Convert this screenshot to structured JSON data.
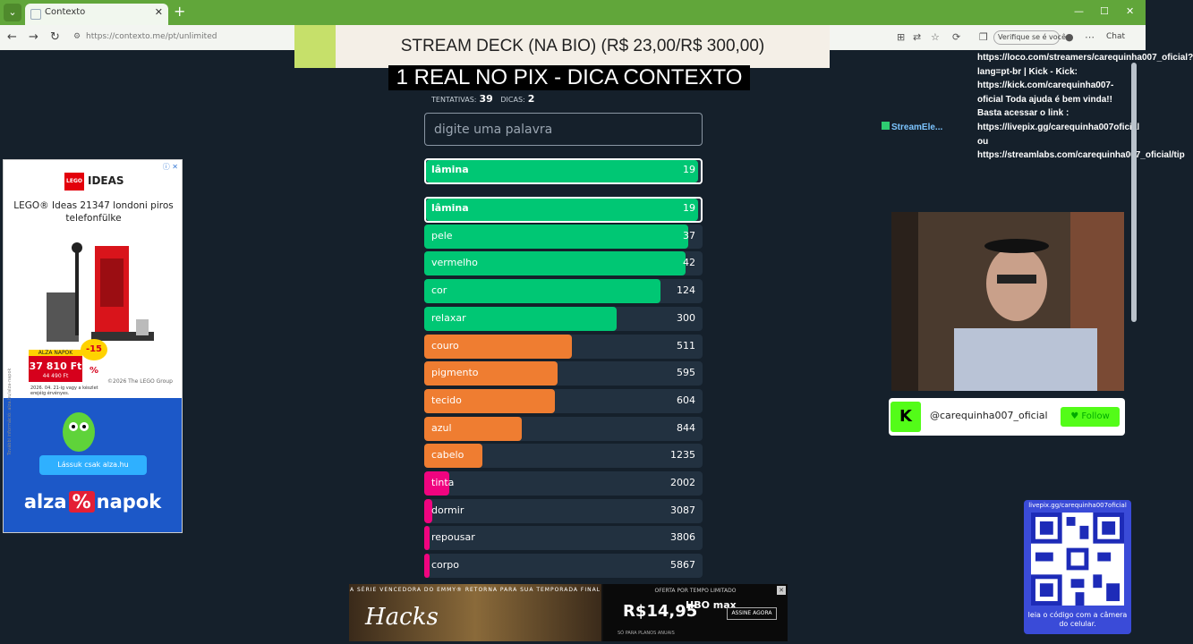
{
  "browser": {
    "tab_title": "Contexto",
    "url": "https://contexto.me/pt/unlimited",
    "verify_label": "Verifique se é você",
    "chat_label": "Chat"
  },
  "overlay": {
    "banner": "STREAM DECK (NA BIO) (R$ 23,00/R$ 300,00)",
    "pix_line": "1 REAL NO PIX - DICA CONTEXTO"
  },
  "game": {
    "attempts_label": "TENTATIVAS:",
    "attempts": "39",
    "hints_label": "DICAS:",
    "hints": "2",
    "input_placeholder": "digite uma palavra",
    "last_guess": {
      "word": "lâmina",
      "rank": "19",
      "progress": 0.99,
      "color": "#00c774"
    },
    "guesses": [
      {
        "word": "lâmina",
        "rank": "19",
        "progress": 0.99,
        "color": "#00c774"
      },
      {
        "word": "pele",
        "rank": "37",
        "progress": 0.95,
        "color": "#00c774"
      },
      {
        "word": "vermelho",
        "rank": "42",
        "progress": 0.94,
        "color": "#00c774"
      },
      {
        "word": "cor",
        "rank": "124",
        "progress": 0.85,
        "color": "#00c774"
      },
      {
        "word": "relaxar",
        "rank": "300",
        "progress": 0.69,
        "color": "#00c774"
      },
      {
        "word": "couro",
        "rank": "511",
        "progress": 0.53,
        "color": "#ef7d31"
      },
      {
        "word": "pigmento",
        "rank": "595",
        "progress": 0.48,
        "color": "#ef7d31"
      },
      {
        "word": "tecido",
        "rank": "604",
        "progress": 0.47,
        "color": "#ef7d31"
      },
      {
        "word": "azul",
        "rank": "844",
        "progress": 0.35,
        "color": "#ef7d31"
      },
      {
        "word": "cabelo",
        "rank": "1235",
        "progress": 0.21,
        "color": "#ef7d31"
      },
      {
        "word": "tinta",
        "rank": "2002",
        "progress": 0.09,
        "color": "#f0047f"
      },
      {
        "word": "dormir",
        "rank": "3087",
        "progress": 0.03,
        "color": "#f0047f"
      },
      {
        "word": "repousar",
        "rank": "3806",
        "progress": 0.02,
        "color": "#f0047f"
      },
      {
        "word": "corpo",
        "rank": "5867",
        "progress": 0.02,
        "color": "#f0047f"
      }
    ]
  },
  "left_ad": {
    "brand": "IDEAS",
    "title": "LEGO® Ideas 21347 londoni piros telefonfülke",
    "price_tag": "ALZA NAPOK",
    "price": "37 810 Ft",
    "discount": "-15 %",
    "old_price": "44 490 Ft",
    "note": "2026. 04. 21-ig vagy a készlet erejéig érvényes.",
    "copyright": "©2026 The LEGO Group",
    "cta": "Lássuk csak alza.hu",
    "logo_left": "alza",
    "logo_pct": "%",
    "logo_right": "napok",
    "vertical_note": "További információ: alza.hu/alza-napok"
  },
  "right": {
    "chat_message": "https://loco.com/streamers/carequinha007_oficial?lang=pt-br | Kick - Kick: https://kick.com/carequinha007-oficial Toda ajuda é bem vinda!! Basta acessar o link : https://livepix.gg/carequinha007oficial ou https://streamlabs.com/carequinha007_oficial/tip",
    "streamelements": "StreamEle...",
    "kick_handle": "@carequinha007_oficial",
    "follow": "Follow",
    "qr_url": "livepix.gg/carequinha007oficial",
    "qr_caption": "leia o código com a câmera do celular."
  },
  "bottom_ad": {
    "tagline": "A SÉRIE VENCEDORA DO EMMY® RETORNA PARA SUA TEMPORADA FINAL",
    "title": "Hacks",
    "offer": "OFERTA POR TEMPO LIMITADO",
    "price": "R$14,95",
    "logo": "HBO max",
    "button": "ASSINE AGORA",
    "note": "SÓ PARA PLANOS ANUAIS"
  }
}
